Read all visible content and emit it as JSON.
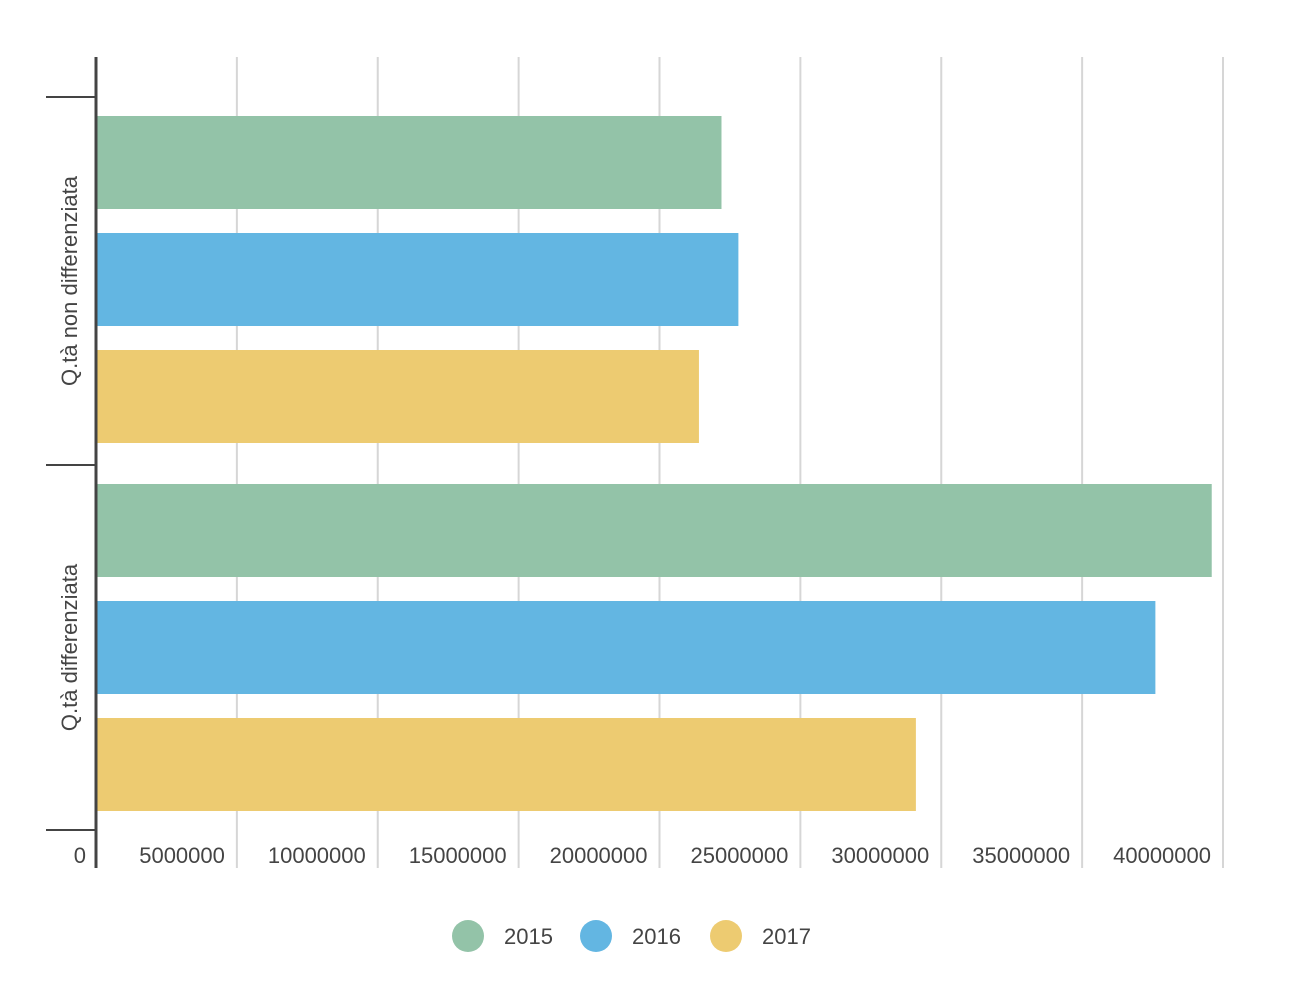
{
  "chart_data": {
    "type": "bar",
    "orientation": "horizontal",
    "title": "",
    "xlabel": "",
    "ylabel": "",
    "categories": [
      "Q.tà non differenziata",
      "Q.tà differenziata"
    ],
    "series": [
      {
        "name": "2015",
        "color": "#93c3a8",
        "values": [
          22200000,
          39600000
        ]
      },
      {
        "name": "2016",
        "color": "#63b6e2",
        "values": [
          22800000,
          37600000
        ]
      },
      {
        "name": "2017",
        "color": "#edcb71",
        "values": [
          21400000,
          29100000
        ]
      }
    ],
    "xlim": [
      0,
      40000000
    ],
    "ticks": [
      {
        "value": 0,
        "label": "0"
      },
      {
        "value": 5000000,
        "label": "5000000"
      },
      {
        "value": 10000000,
        "label": "10000000"
      },
      {
        "value": 15000000,
        "label": "15000000"
      },
      {
        "value": 20000000,
        "label": "20000000"
      },
      {
        "value": 25000000,
        "label": "25000000"
      },
      {
        "value": 30000000,
        "label": "30000000"
      },
      {
        "value": 35000000,
        "label": "35000000"
      },
      {
        "value": 40000000,
        "label": "40000000"
      }
    ],
    "grid": true,
    "legend_position": "bottom"
  }
}
